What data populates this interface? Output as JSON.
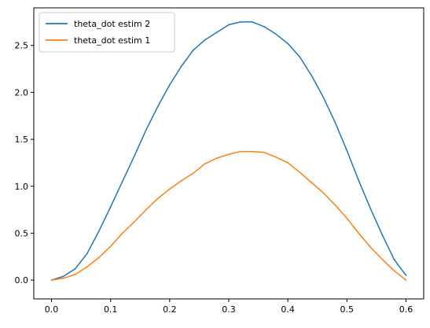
{
  "chart_data": {
    "type": "line",
    "title": "",
    "xlabel": "",
    "ylabel": "",
    "xlim": [
      -0.03,
      0.63
    ],
    "ylim": [
      -0.2,
      2.9
    ],
    "x_ticks": [
      0.0,
      0.1,
      0.2,
      0.3,
      0.4,
      0.5,
      0.6
    ],
    "x_tick_labels": [
      "0.0",
      "0.1",
      "0.2",
      "0.3",
      "0.4",
      "0.5",
      "0.6"
    ],
    "y_ticks": [
      0.0,
      0.5,
      1.0,
      1.5,
      2.0,
      2.5
    ],
    "y_tick_labels": [
      "0.0",
      "0.5",
      "1.0",
      "1.5",
      "2.0",
      "2.5"
    ],
    "grid": false,
    "legend": "top-left",
    "series": [
      {
        "name": "theta_dot estim 2",
        "color": "#1f77b4",
        "x": [
          0.0,
          0.02,
          0.04,
          0.06,
          0.08,
          0.1,
          0.12,
          0.14,
          0.16,
          0.18,
          0.2,
          0.22,
          0.24,
          0.26,
          0.28,
          0.3,
          0.32,
          0.34,
          0.36,
          0.38,
          0.4,
          0.42,
          0.44,
          0.46,
          0.48,
          0.5,
          0.52,
          0.54,
          0.56,
          0.58,
          0.6
        ],
        "y": [
          0.0,
          0.04,
          0.12,
          0.28,
          0.52,
          0.78,
          1.05,
          1.32,
          1.6,
          1.85,
          2.08,
          2.28,
          2.45,
          2.56,
          2.64,
          2.72,
          2.75,
          2.75,
          2.7,
          2.62,
          2.52,
          2.38,
          2.18,
          1.95,
          1.68,
          1.38,
          1.06,
          0.76,
          0.48,
          0.22,
          0.05
        ]
      },
      {
        "name": "theta_dot estim 1",
        "color": "#ff7f0e",
        "x": [
          0.0,
          0.02,
          0.04,
          0.06,
          0.08,
          0.1,
          0.12,
          0.14,
          0.16,
          0.18,
          0.2,
          0.22,
          0.24,
          0.26,
          0.28,
          0.3,
          0.32,
          0.34,
          0.36,
          0.38,
          0.4,
          0.42,
          0.44,
          0.46,
          0.48,
          0.5,
          0.52,
          0.54,
          0.56,
          0.58,
          0.6
        ],
        "y": [
          0.0,
          0.02,
          0.06,
          0.14,
          0.24,
          0.36,
          0.5,
          0.62,
          0.75,
          0.87,
          0.97,
          1.06,
          1.14,
          1.24,
          1.3,
          1.34,
          1.37,
          1.37,
          1.36,
          1.31,
          1.25,
          1.15,
          1.04,
          0.93,
          0.8,
          0.66,
          0.5,
          0.35,
          0.22,
          0.1,
          0.0
        ]
      }
    ]
  }
}
